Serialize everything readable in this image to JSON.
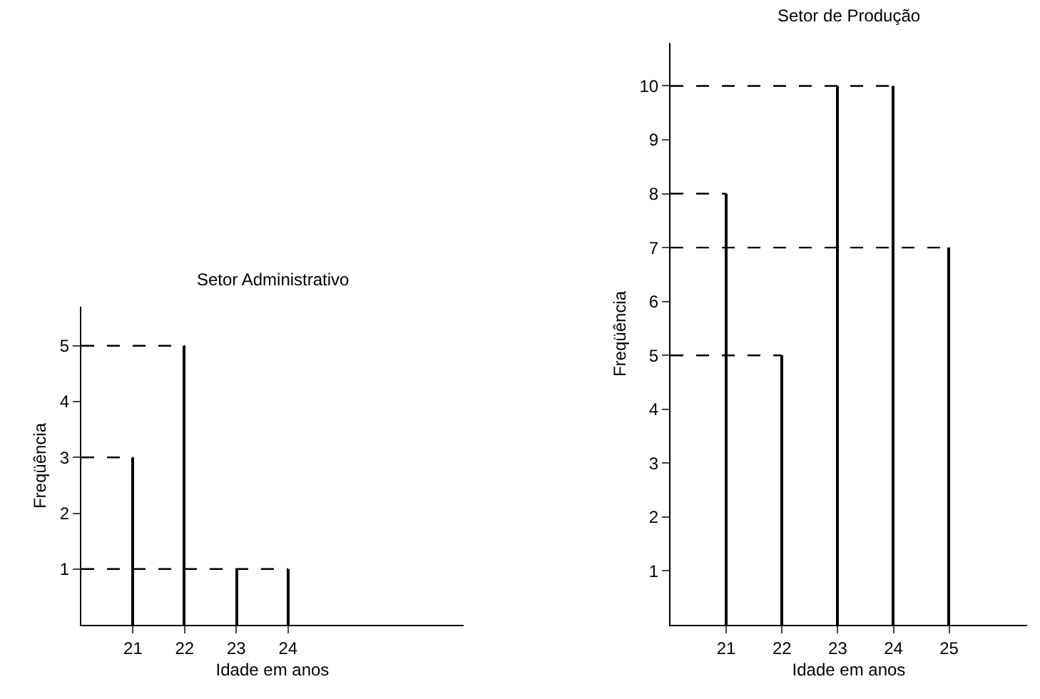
{
  "chart_data": [
    {
      "type": "bar",
      "title": "Setor Administrativo",
      "xlabel": "Idade em anos",
      "ylabel": "Freqüência",
      "marker": "none",
      "xlim": [
        20,
        27.4
      ],
      "ylim": [
        0,
        5.7
      ],
      "xticks": [
        21,
        22,
        23,
        24
      ],
      "yticks": [
        1,
        2,
        3,
        4,
        5
      ],
      "series": [
        {
          "color": "#000000",
          "x": [
            21,
            22,
            23,
            24
          ],
          "values": [
            3,
            5,
            1,
            1
          ]
        },
        {
          "type": "line",
          "line_style": "dashed",
          "color": "#000000",
          "x": [
            20,
            21
          ],
          "values": [
            3,
            3
          ]
        },
        {
          "type": "line",
          "line_style": "dashed",
          "color": "#000000",
          "x": [
            20,
            22
          ],
          "values": [
            5,
            5
          ]
        },
        {
          "type": "line",
          "line_style": "dashed",
          "color": "#000000",
          "x": [
            20,
            24
          ],
          "values": [
            1,
            1
          ]
        }
      ]
    },
    {
      "type": "bar",
      "title": "Setor de Produção",
      "xlabel": "Idade em anos",
      "ylabel": "Freqüência",
      "marker": "none",
      "xlim": [
        20,
        26.4
      ],
      "ylim": [
        0,
        10.8
      ],
      "xticks": [
        21,
        22,
        23,
        24,
        25
      ],
      "yticks": [
        1,
        2,
        3,
        4,
        5,
        6,
        7,
        8,
        9,
        10
      ],
      "series": [
        {
          "color": "#000000",
          "x": [
            21,
            22,
            23,
            24,
            25
          ],
          "values": [
            8,
            5,
            10,
            10,
            7
          ]
        },
        {
          "type": "line",
          "line_style": "dashed",
          "color": "#000000",
          "x": [
            20,
            21
          ],
          "values": [
            8,
            8
          ]
        },
        {
          "type": "line",
          "line_style": "dashed",
          "color": "#000000",
          "x": [
            20,
            22
          ],
          "values": [
            5,
            5
          ]
        },
        {
          "type": "line",
          "line_style": "dashed",
          "color": "#000000",
          "x": [
            20,
            24
          ],
          "values": [
            10,
            10
          ]
        },
        {
          "type": "line",
          "line_style": "dashed",
          "color": "#000000",
          "x": [
            20,
            25
          ],
          "values": [
            7,
            7
          ]
        }
      ]
    }
  ]
}
